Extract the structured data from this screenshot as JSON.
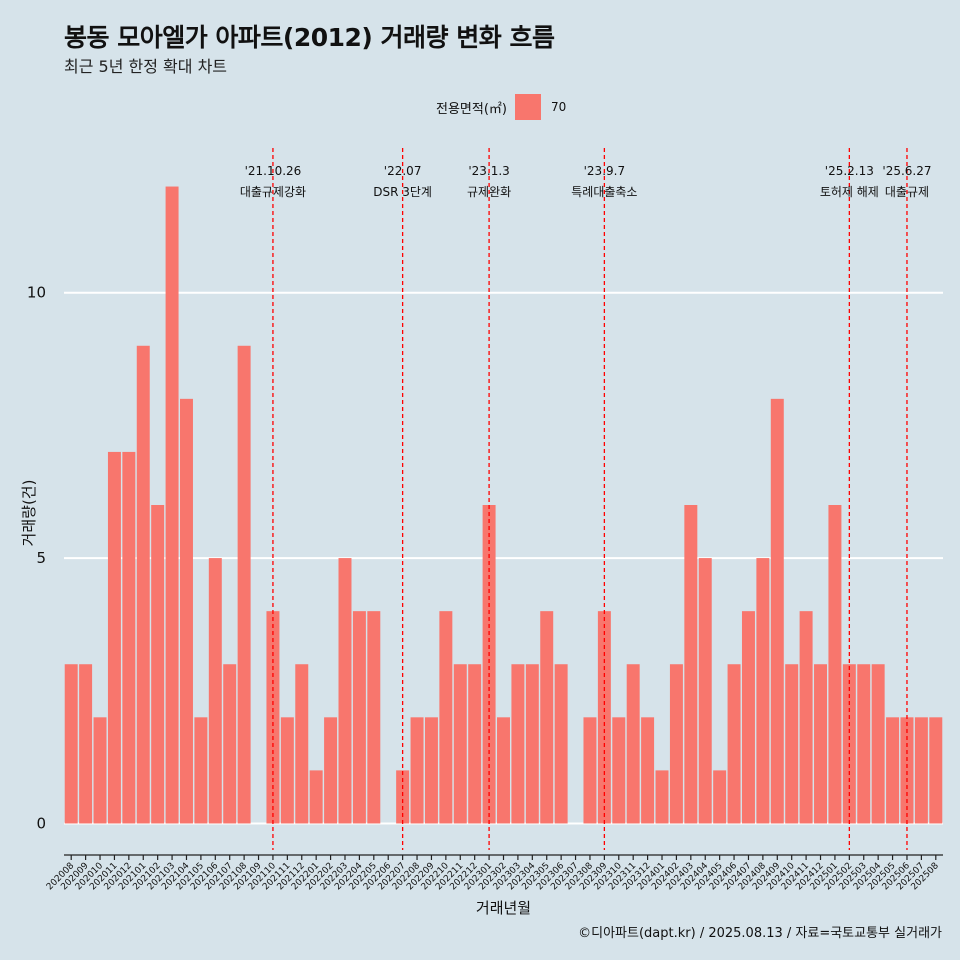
{
  "title": "봉동 모아엘가 아파트(2012) 거래량 변화 흐름",
  "subtitle": "최근 5년 한정 확대 차트",
  "caption": "©디아파트(dapt.kr) / 2025.08.13 / 자료=국토교통부 실거래가",
  "legend": {
    "title": "전용면적(㎡)",
    "label": "70"
  },
  "colors": {
    "bar": "#f8766d",
    "background": "#d6e3ea",
    "grid": "#ffffff",
    "event_line": "#ff0000"
  },
  "chart_data": {
    "type": "bar",
    "xlabel": "거래년월",
    "ylabel": "거래량(건)",
    "ylim": [
      -0.5,
      12.5
    ],
    "yticks": [
      0,
      5,
      10
    ],
    "grid": true,
    "legend_position": "top",
    "categories": [
      "202008",
      "202009",
      "202010",
      "202011",
      "202012",
      "202101",
      "202102",
      "202103",
      "202104",
      "202105",
      "202106",
      "202107",
      "202108",
      "202109",
      "202110",
      "202111",
      "202112",
      "202201",
      "202202",
      "202203",
      "202204",
      "202205",
      "202206",
      "202207",
      "202208",
      "202209",
      "202210",
      "202211",
      "202212",
      "202301",
      "202302",
      "202303",
      "202304",
      "202305",
      "202306",
      "202307",
      "202308",
      "202309",
      "202310",
      "202311",
      "202312",
      "202401",
      "202402",
      "202403",
      "202404",
      "202405",
      "202406",
      "202407",
      "202408",
      "202409",
      "202410",
      "202411",
      "202412",
      "202501",
      "202502",
      "202503",
      "202504",
      "202505",
      "202506",
      "202507",
      "202508"
    ],
    "series": [
      {
        "name": "70",
        "values": [
          3,
          3,
          2,
          7,
          7,
          9,
          6,
          12,
          8,
          2,
          5,
          3,
          9,
          0,
          4,
          2,
          3,
          1,
          2,
          5,
          4,
          4,
          0,
          1,
          2,
          2,
          4,
          3,
          3,
          6,
          2,
          3,
          3,
          4,
          3,
          0,
          2,
          4,
          2,
          3,
          2,
          1,
          3,
          6,
          5,
          1,
          3,
          4,
          5,
          8,
          3,
          4,
          3,
          6,
          3,
          3,
          3,
          2,
          2,
          2,
          2
        ]
      }
    ],
    "annotations": [
      {
        "x": "202110",
        "date": "'21.10.26",
        "label": "대출규제강화"
      },
      {
        "x": "202207",
        "date": "'22.07",
        "label": "DSR 3단계"
      },
      {
        "x": "202301",
        "date": "'23.1.3",
        "label": "규제완화"
      },
      {
        "x": "202309",
        "date": "'23.9.7",
        "label": "특례대출축소"
      },
      {
        "x": "202502",
        "date": "'25.2.13",
        "label": "토허제 해제"
      },
      {
        "x": "202506",
        "date": "'25.6.27",
        "label": "대출규제"
      }
    ]
  }
}
